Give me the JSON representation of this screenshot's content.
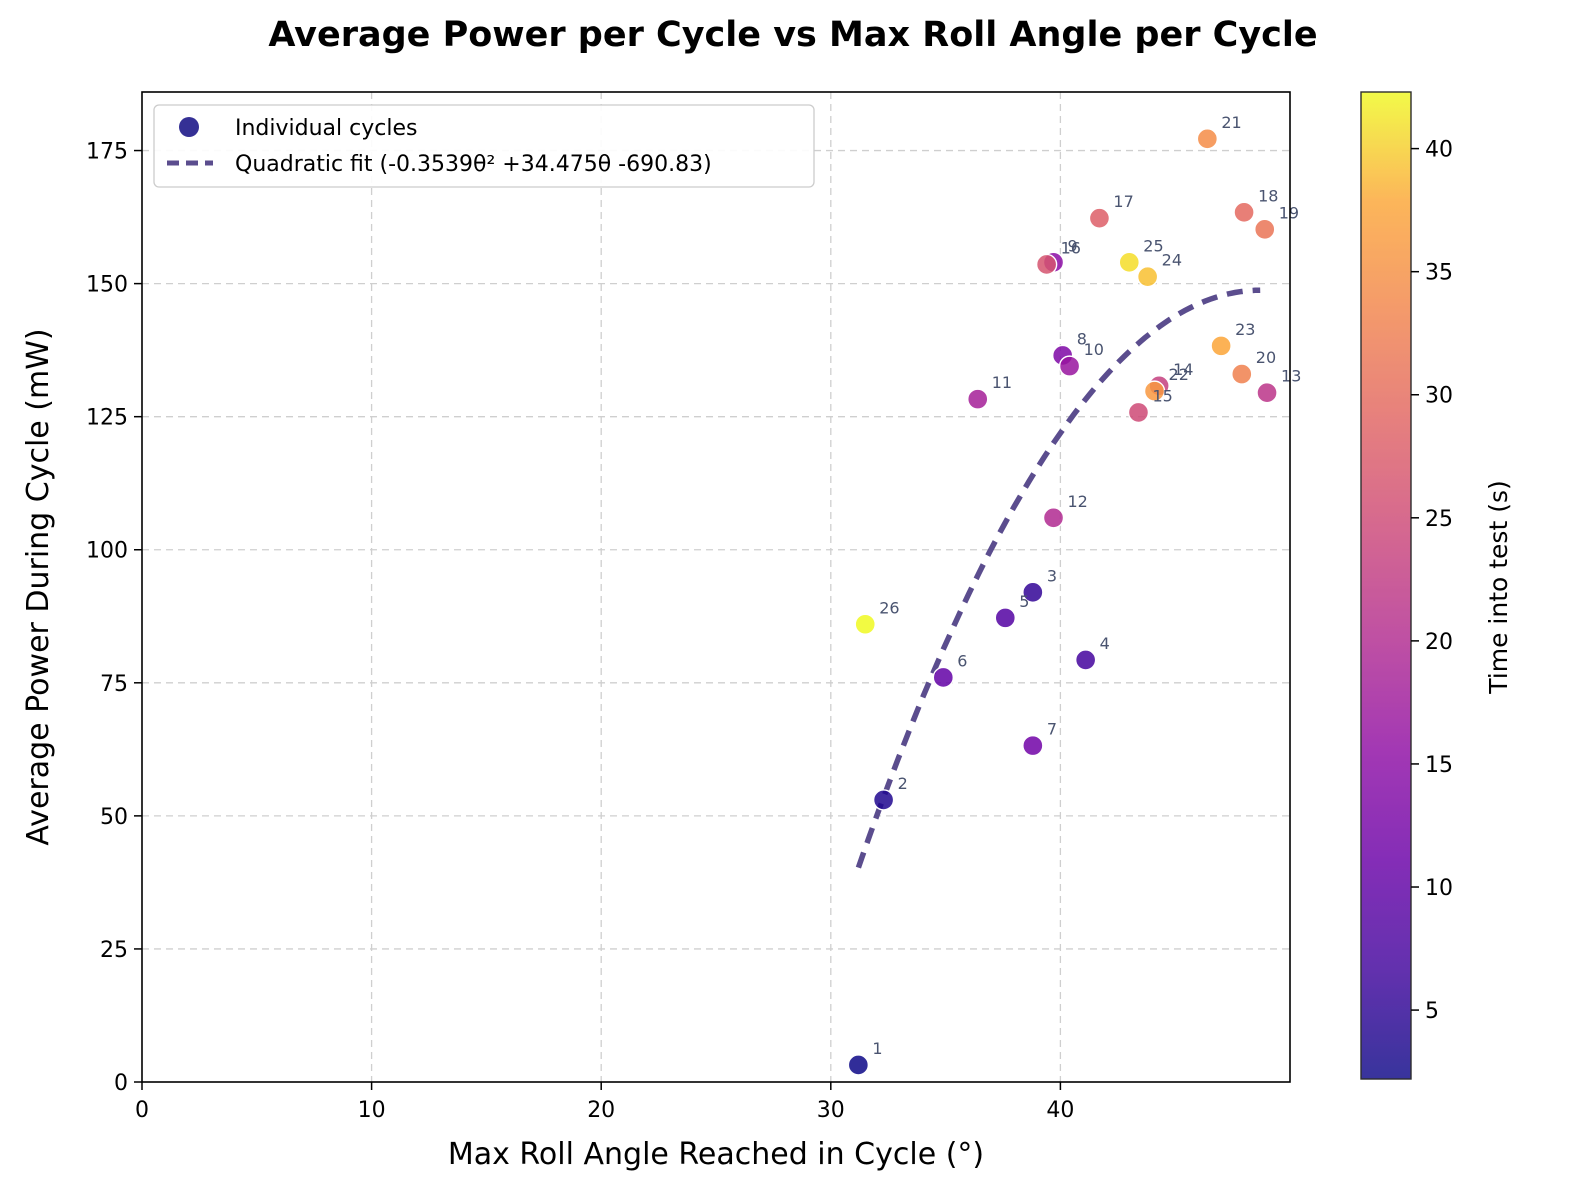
{
  "chart_data": {
    "type": "scatter",
    "title": "Average Power per Cycle vs Max Roll Angle per Cycle",
    "xlabel": "Max Roll Angle Reached in Cycle (°)",
    "ylabel": "Average Power During Cycle (mW)",
    "xlim": [
      0,
      50
    ],
    "ylim": [
      0,
      186
    ],
    "x_ticks": [
      "0",
      "10",
      "20",
      "30",
      "40"
    ],
    "y_ticks": [
      "0",
      "25",
      "50",
      "75",
      "100",
      "125",
      "150",
      "175"
    ],
    "grid": true,
    "legend_position": "top-left",
    "colorbar": {
      "label": "Time into test (s)",
      "range": [
        2.2,
        42.3
      ],
      "ticks": [
        "5",
        "10",
        "15",
        "20",
        "25",
        "30",
        "35",
        "40"
      ],
      "colormap": "plasma"
    },
    "series": [
      {
        "name": "Individual cycles",
        "points": [
          {
            "label": "1",
            "x": 31.2,
            "y": 3.2,
            "t": 2.2
          },
          {
            "label": "2",
            "x": 32.3,
            "y": 53.0,
            "t": 3.8
          },
          {
            "label": "3",
            "x": 38.8,
            "y": 92.0,
            "t": 5.4
          },
          {
            "label": "4",
            "x": 41.1,
            "y": 79.3,
            "t": 7.0
          },
          {
            "label": "5",
            "x": 37.6,
            "y": 87.2,
            "t": 8.7
          },
          {
            "label": "6",
            "x": 34.9,
            "y": 76.0,
            "t": 10.3
          },
          {
            "label": "7",
            "x": 38.8,
            "y": 63.2,
            "t": 11.9
          },
          {
            "label": "8",
            "x": 40.1,
            "y": 136.5,
            "t": 13.5
          },
          {
            "label": "9",
            "x": 39.7,
            "y": 154.0,
            "t": 15.1
          },
          {
            "label": "10",
            "x": 40.4,
            "y": 134.5,
            "t": 16.7
          },
          {
            "label": "11",
            "x": 36.4,
            "y": 128.3,
            "t": 18.3
          },
          {
            "label": "12",
            "x": 39.7,
            "y": 106.0,
            "t": 19.9
          },
          {
            "label": "13",
            "x": 49.0,
            "y": 129.5,
            "t": 21.6
          },
          {
            "label": "14",
            "x": 44.3,
            "y": 130.8,
            "t": 23.2
          },
          {
            "label": "15",
            "x": 43.4,
            "y": 125.8,
            "t": 24.8
          },
          {
            "label": "16",
            "x": 39.4,
            "y": 153.6,
            "t": 26.4
          },
          {
            "label": "17",
            "x": 41.7,
            "y": 162.3,
            "t": 28.0
          },
          {
            "label": "18",
            "x": 48.0,
            "y": 163.4,
            "t": 29.6
          },
          {
            "label": "19",
            "x": 48.9,
            "y": 160.2,
            "t": 31.2
          },
          {
            "label": "20",
            "x": 47.9,
            "y": 133.0,
            "t": 32.8
          },
          {
            "label": "21",
            "x": 46.4,
            "y": 177.2,
            "t": 34.4
          },
          {
            "label": "22",
            "x": 44.1,
            "y": 129.8,
            "t": 36.0
          },
          {
            "label": "23",
            "x": 47.0,
            "y": 138.3,
            "t": 37.6
          },
          {
            "label": "24",
            "x": 43.8,
            "y": 151.3,
            "t": 39.2
          },
          {
            "label": "25",
            "x": 43.0,
            "y": 154.0,
            "t": 40.8
          },
          {
            "label": "26",
            "x": 31.5,
            "y": 86.0,
            "t": 42.3
          }
        ]
      },
      {
        "name": "Quadratic fit  (-0.3539θ²  +34.475θ  -690.83)",
        "type": "line",
        "style": "dashed",
        "color": "#5b4d8e",
        "coefficients": [
          -0.3539,
          34.475,
          -690.83
        ],
        "x_range": [
          31.2,
          48.7
        ]
      }
    ]
  }
}
